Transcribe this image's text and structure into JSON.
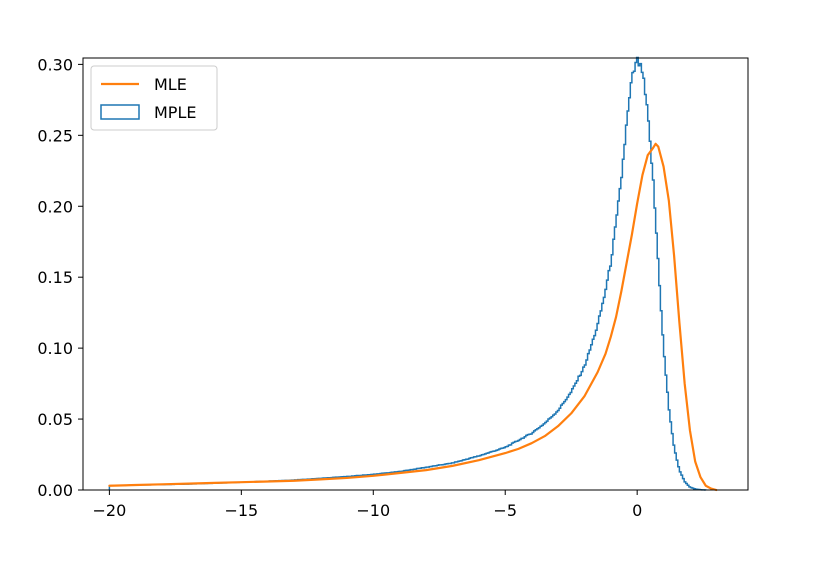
{
  "chart_data": {
    "type": "line",
    "title": "",
    "xlabel": "",
    "ylabel": "",
    "xlim": [
      -21,
      4.2
    ],
    "ylim": [
      0,
      0.3045
    ],
    "x_ticks": [
      {
        "value": -20,
        "label": "−20"
      },
      {
        "value": -15,
        "label": "−15"
      },
      {
        "value": -10,
        "label": "−10"
      },
      {
        "value": -5,
        "label": "−5"
      },
      {
        "value": 0,
        "label": "0"
      }
    ],
    "y_ticks": [
      {
        "value": 0.0,
        "label": "0.00"
      },
      {
        "value": 0.05,
        "label": "0.05"
      },
      {
        "value": 0.1,
        "label": "0.10"
      },
      {
        "value": 0.15,
        "label": "0.15"
      },
      {
        "value": 0.2,
        "label": "0.20"
      },
      {
        "value": 0.25,
        "label": "0.25"
      },
      {
        "value": 0.3,
        "label": "0.30"
      }
    ],
    "grid": false,
    "legend": {
      "position": "top-left"
    },
    "series": [
      {
        "name": "MLE",
        "style": "line",
        "color": "#ff7f0e",
        "x": [
          -20,
          -19,
          -18,
          -17,
          -16,
          -15,
          -14,
          -13,
          -12,
          -11,
          -10,
          -9,
          -8,
          -7,
          -6,
          -5,
          -4.5,
          -4,
          -3.5,
          -3,
          -2.5,
          -2,
          -1.5,
          -1.2,
          -1,
          -0.8,
          -0.6,
          -0.4,
          -0.2,
          0,
          0.2,
          0.4,
          0.6,
          0.7,
          0.8,
          1,
          1.2,
          1.4,
          1.6,
          1.8,
          2,
          2.2,
          2.4,
          2.6,
          2.8,
          3.0
        ],
        "y": [
          0.003,
          0.0035,
          0.004,
          0.0045,
          0.005,
          0.0055,
          0.006,
          0.0065,
          0.0075,
          0.0085,
          0.01,
          0.012,
          0.014,
          0.017,
          0.021,
          0.026,
          0.029,
          0.033,
          0.038,
          0.045,
          0.054,
          0.066,
          0.083,
          0.096,
          0.108,
          0.122,
          0.14,
          0.16,
          0.18,
          0.202,
          0.222,
          0.236,
          0.241,
          0.244,
          0.242,
          0.228,
          0.204,
          0.165,
          0.118,
          0.075,
          0.042,
          0.02,
          0.009,
          0.003,
          0.001,
          0.0
        ]
      },
      {
        "name": "MPLE",
        "style": "step",
        "color": "#1f77b4",
        "x": [
          -20,
          -19,
          -18,
          -17,
          -16,
          -15,
          -14,
          -13,
          -12,
          -11,
          -10,
          -9,
          -8,
          -7,
          -6,
          -5,
          -4.5,
          -4,
          -3.5,
          -3,
          -2.5,
          -2,
          -1.75,
          -1.5,
          -1.25,
          -1,
          -0.8,
          -0.6,
          -0.4,
          -0.2,
          0,
          0.2,
          0.4,
          0.6,
          0.8,
          1,
          1.2,
          1.4,
          1.6,
          1.8,
          2,
          2.2,
          2.4,
          2.6
        ],
        "y": [
          0.003,
          0.0035,
          0.0038,
          0.0042,
          0.0048,
          0.0055,
          0.0062,
          0.007,
          0.0082,
          0.0095,
          0.011,
          0.013,
          0.016,
          0.019,
          0.024,
          0.03,
          0.035,
          0.04,
          0.047,
          0.056,
          0.069,
          0.087,
          0.101,
          0.116,
          0.136,
          0.16,
          0.188,
          0.219,
          0.258,
          0.29,
          0.303,
          0.295,
          0.265,
          0.22,
          0.16,
          0.1,
          0.058,
          0.03,
          0.014,
          0.006,
          0.002,
          0.0007,
          0.0002,
          0.0
        ]
      }
    ]
  }
}
